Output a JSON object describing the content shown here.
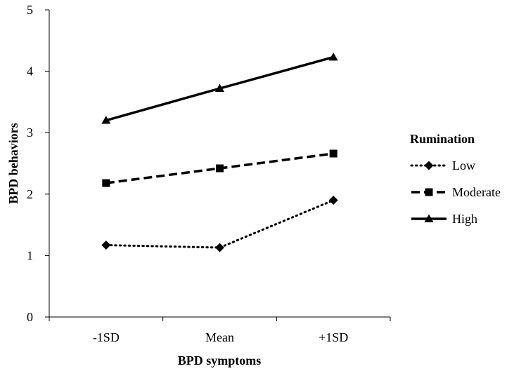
{
  "chart_data": {
    "type": "line",
    "categories": [
      "-1SD",
      "Mean",
      "+1SD"
    ],
    "series": [
      {
        "name": "Low",
        "values": [
          1.17,
          1.13,
          1.9
        ],
        "line_style": "dotted",
        "marker": "diamond"
      },
      {
        "name": "Moderate",
        "values": [
          2.18,
          2.42,
          2.66
        ],
        "line_style": "dashed",
        "marker": "square"
      },
      {
        "name": "High",
        "values": [
          3.2,
          3.72,
          4.23
        ],
        "line_style": "solid",
        "marker": "triangle"
      }
    ],
    "title": "",
    "xlabel": "BPD symptoms",
    "ylabel": "BPD behaviors",
    "ylim": [
      0,
      5
    ],
    "yticks": [
      0,
      1,
      2,
      3,
      4,
      5
    ],
    "grid": false,
    "legend_title": "Rumination",
    "legend_position": "right",
    "color": "#000000"
  }
}
